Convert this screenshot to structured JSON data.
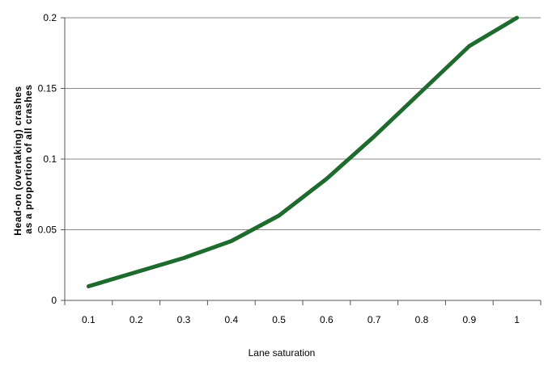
{
  "chart_data": {
    "type": "line",
    "title": "",
    "xlabel": "Lane saturation",
    "ylabel_lines": [
      "Head-on (overtaking) crashes",
      "as a proportion of all crashes"
    ],
    "x": [
      0.1,
      0.2,
      0.3,
      0.4,
      0.5,
      0.6,
      0.7,
      0.8,
      0.9,
      1
    ],
    "x_tick_labels": [
      "0.1",
      "0.2",
      "0.3",
      "0.4",
      "0.5",
      "0.6",
      "0.7",
      "0.8",
      "0.9",
      "1"
    ],
    "y_ticks": [
      0,
      0.05,
      0.1,
      0.15,
      0.2
    ],
    "y_tick_labels": [
      "0",
      "0.05",
      "0.1",
      "0.15",
      "0.2"
    ],
    "ylim": [
      0,
      0.2
    ],
    "grid": true,
    "legend": "none",
    "series": [
      {
        "values": [
          0.01,
          0.02,
          0.03,
          0.042,
          0.06,
          0.086,
          0.116,
          0.148,
          0.18,
          0.2
        ],
        "color": "#1e6b2e"
      }
    ]
  }
}
